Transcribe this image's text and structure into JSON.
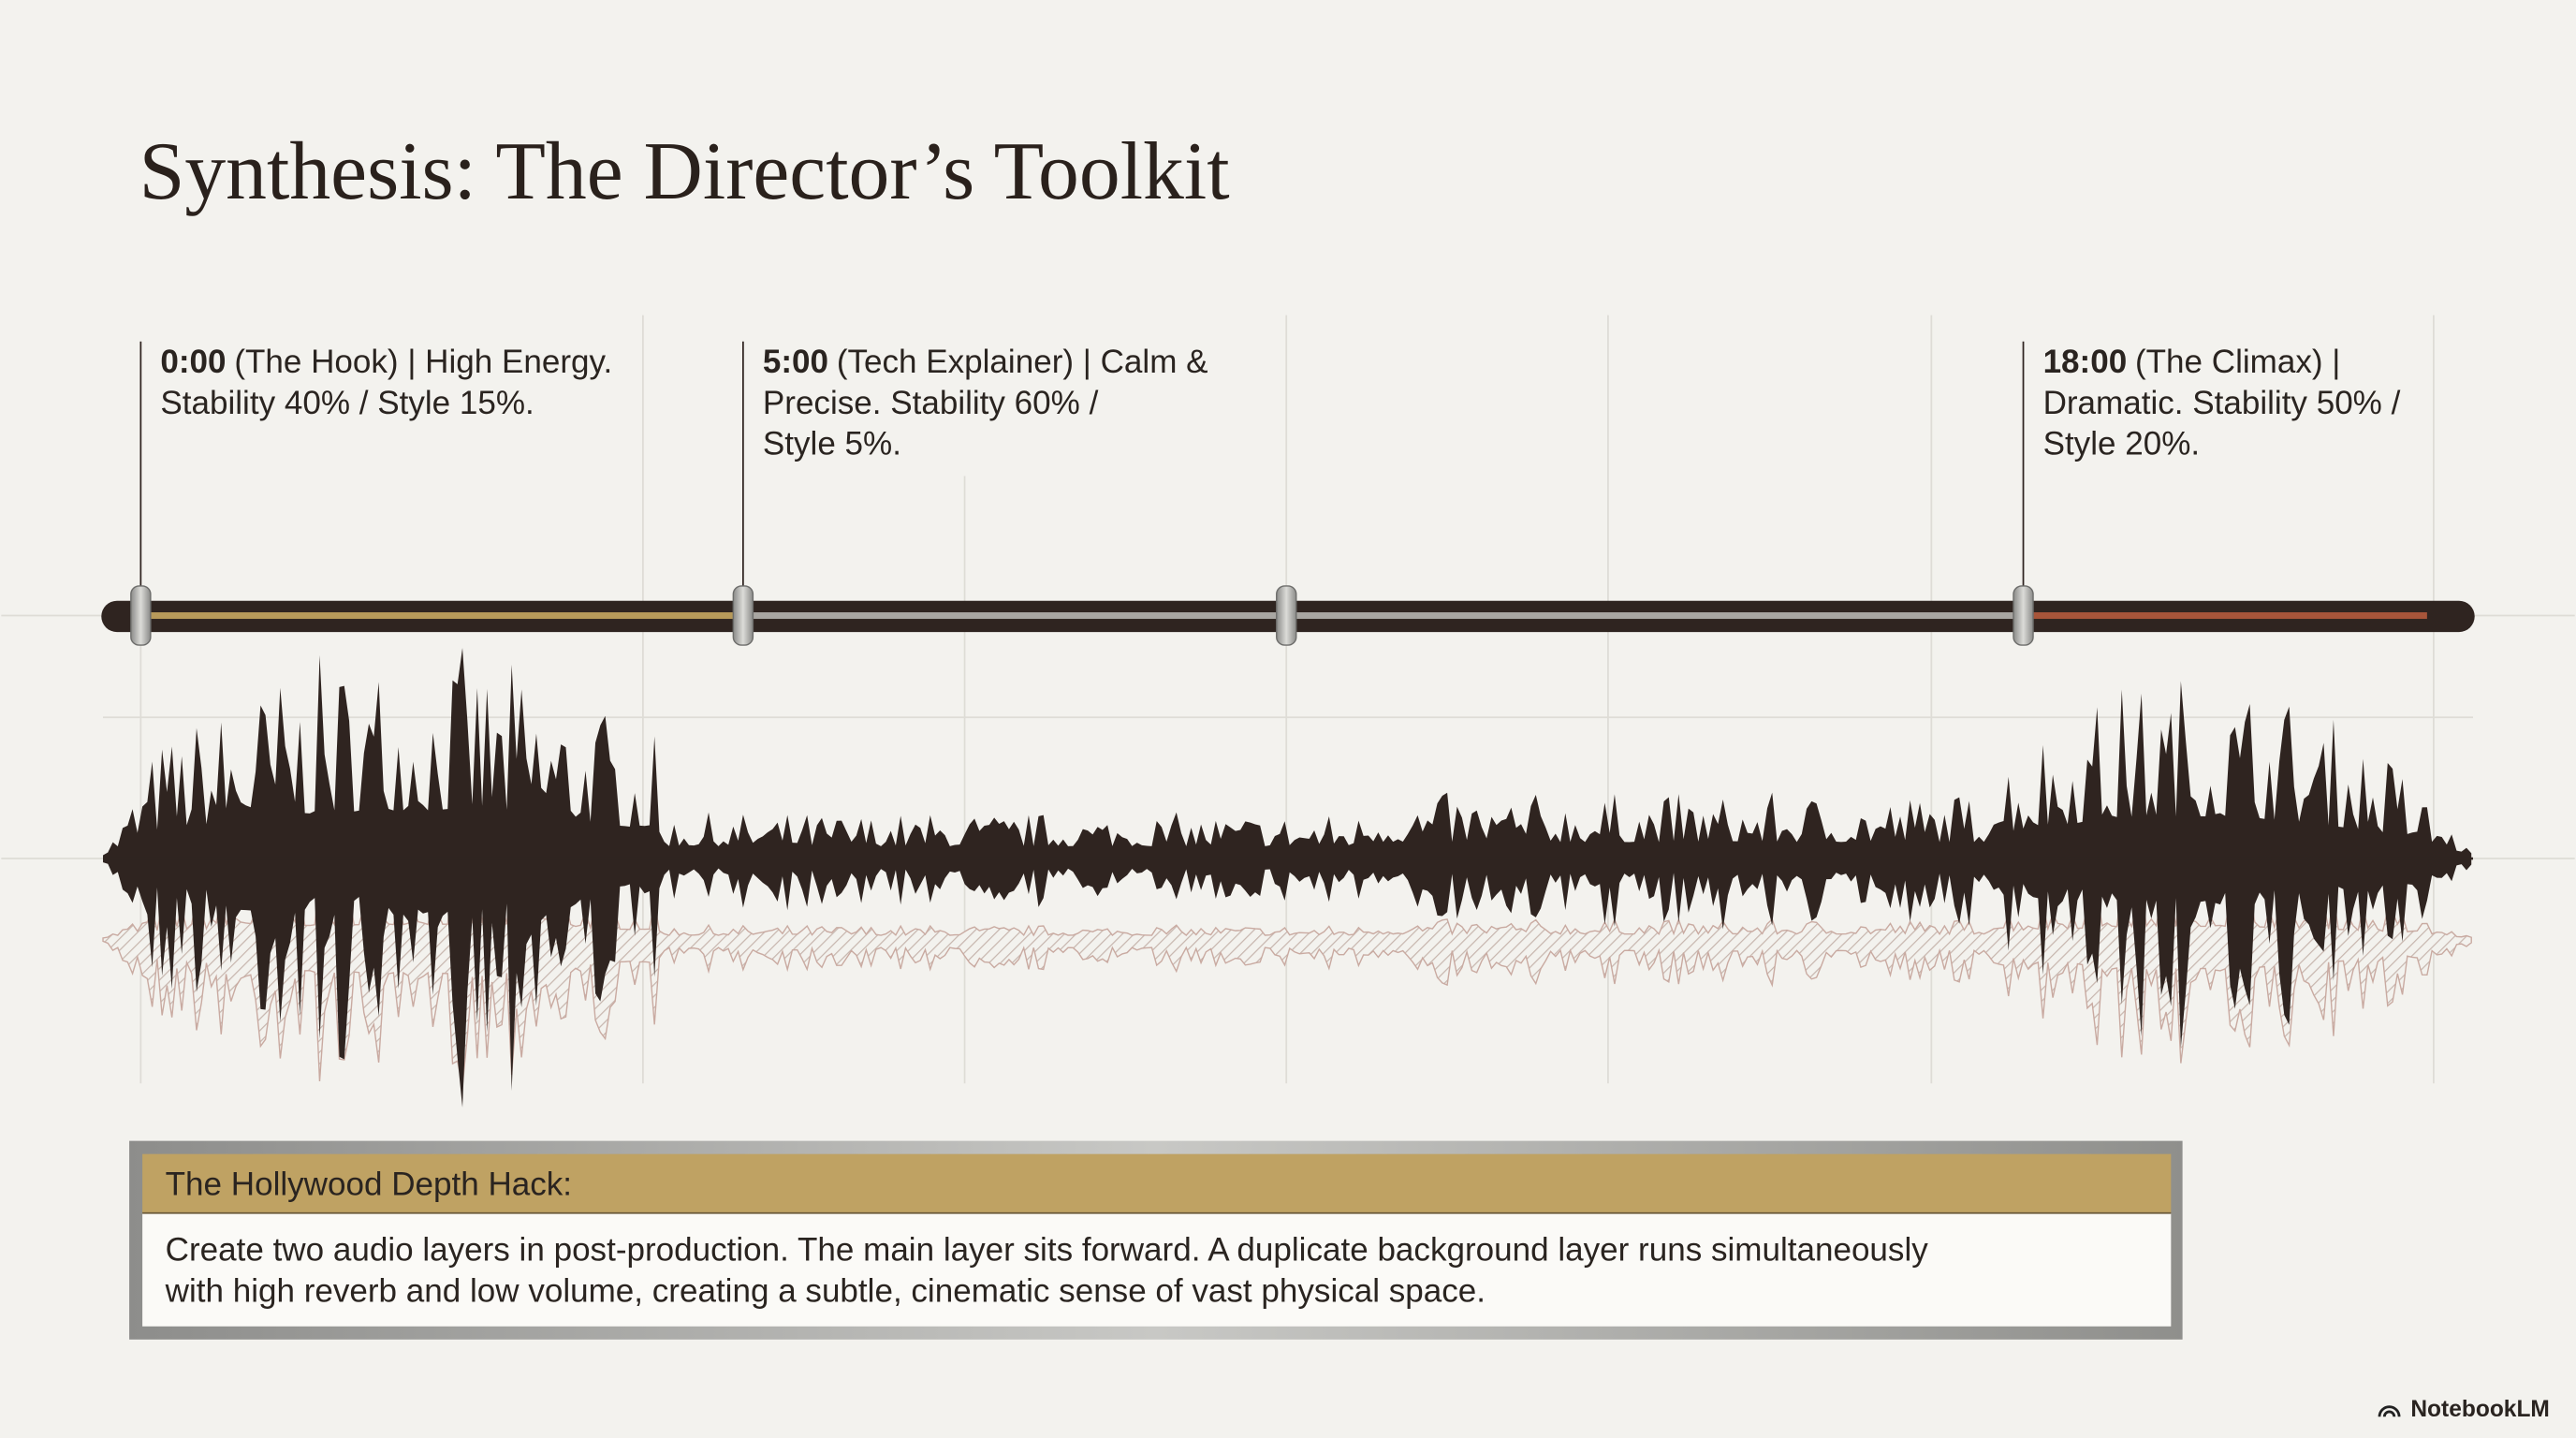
{
  "title": "Synthesis: The Director’s Toolkit",
  "markers": [
    {
      "time": "0:00",
      "lines": [
        "(The Hook) | High Energy.",
        "Stability 40% / Style 15%."
      ]
    },
    {
      "time": "5:00",
      "lines": [
        "(Tech Explainer) | Calm &",
        "Precise. Stability 60% /",
        "Style 5%."
      ]
    },
    {
      "time": "18:00",
      "lines": [
        "(The Climax) |",
        "Dramatic. Stability 50% /",
        "Style 20%."
      ]
    }
  ],
  "callout": {
    "title": "The Hollywood Depth Hack:",
    "lines": [
      "Create two audio layers in post-production. The main layer sits forward. A duplicate background layer runs simultaneously",
      "with high reverb and low volume, creating a subtle, cinematic sense of vast physical space."
    ]
  },
  "brand": "NotebookLM"
}
